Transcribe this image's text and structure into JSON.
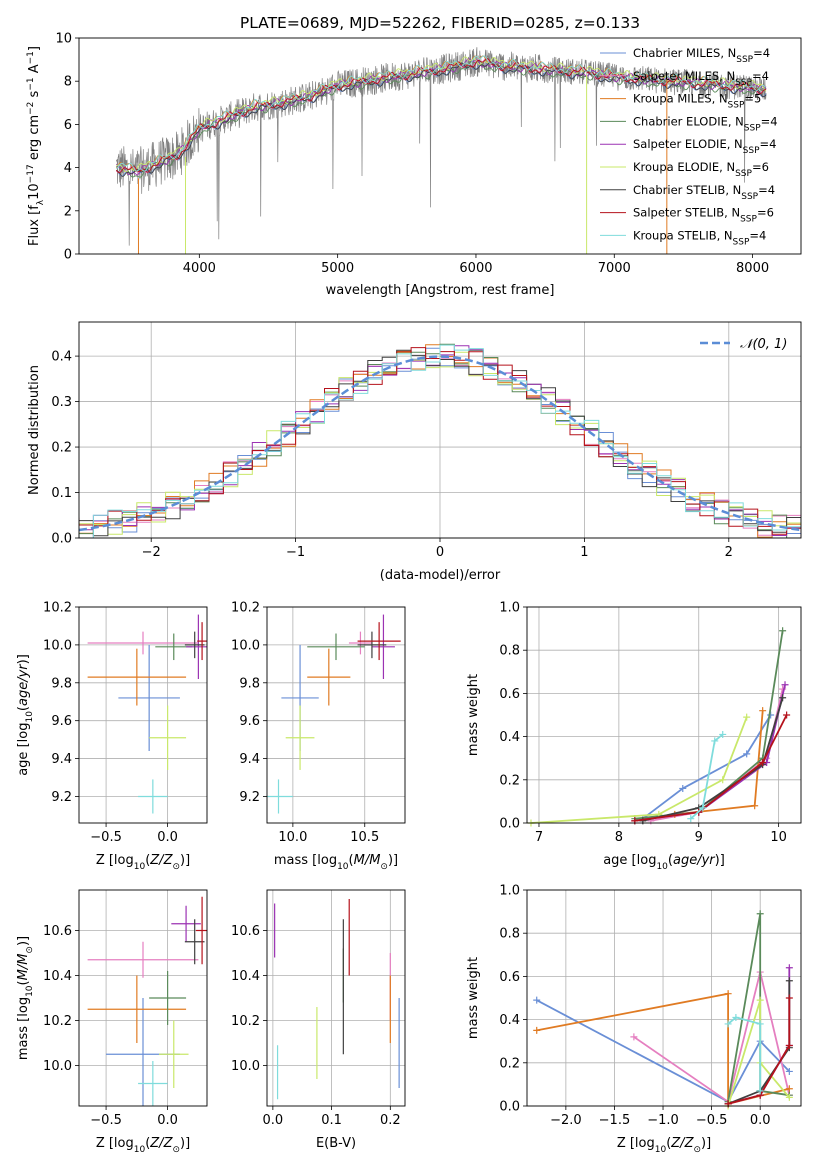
{
  "palette": {
    "chabrier_miles": "#6a8fd6",
    "salpeter_miles": "#e57fc0",
    "kroupa_miles": "#e07b23",
    "chabrier_elodie": "#5a8a5a",
    "salpeter_elodie": "#9b32b3",
    "kroupa_elodie": "#c9e86a",
    "chabrier_stelib": "#404040",
    "salpeter_stelib": "#b5121b",
    "kroupa_stelib": "#7fdcdc",
    "gaussian": "#5b8dd6"
  },
  "chart_data": [
    {
      "id": "spectrum",
      "type": "line",
      "title": "PLATE=0689, MJD=52262, FIBERID=0285, z=0.133",
      "xlabel": "wavelength [Angstrom, rest frame]",
      "ylabel": "Flux [fλ10⁻¹⁷ erg cm⁻² s⁻¹ A⁻¹]",
      "xlim": [
        3130,
        8350
      ],
      "ylim": [
        0,
        10
      ],
      "xticks": [
        4000,
        5000,
        6000,
        7000,
        8000
      ],
      "yticks": [
        0,
        2,
        4,
        6,
        8,
        10
      ],
      "legend_loc": "right",
      "legend": [
        {
          "key": "chabrier_miles",
          "label": "Chabrier MILES, N",
          "sub": "SSP",
          "tail": "=4"
        },
        {
          "key": "salpeter_miles",
          "label": "Salpeter MILES, N",
          "sub": "SSP",
          "tail": "=4"
        },
        {
          "key": "kroupa_miles",
          "label": "Kroupa MILES, N",
          "sub": "SSP",
          "tail": "=5"
        },
        {
          "key": "chabrier_elodie",
          "label": "Chabrier ELODIE, N",
          "sub": "SSP",
          "tail": "=4"
        },
        {
          "key": "salpeter_elodie",
          "label": "Salpeter ELODIE, N",
          "sub": "SSP",
          "tail": "=4"
        },
        {
          "key": "kroupa_elodie",
          "label": "Kroupa ELODIE, N",
          "sub": "SSP",
          "tail": "=6"
        },
        {
          "key": "chabrier_stelib",
          "label": "Chabrier STELIB, N",
          "sub": "SSP",
          "tail": "=4"
        },
        {
          "key": "salpeter_stelib",
          "label": "Salpeter STELIB, N",
          "sub": "SSP",
          "tail": "=6"
        },
        {
          "key": "kroupa_stelib",
          "label": "Kroupa STELIB, N",
          "sub": "SSP",
          "tail": "=4"
        }
      ],
      "continuum": {
        "x": [
          3400,
          3550,
          3700,
          3850,
          4000,
          4200,
          4400,
          4600,
          4800,
          5000,
          5200,
          5400,
          5600,
          5800,
          6000,
          6200,
          6400,
          6600,
          6800,
          7000,
          7200,
          7400,
          7600,
          7800,
          8000,
          8100
        ],
        "y": [
          4.0,
          3.8,
          4.2,
          4.6,
          5.8,
          6.3,
          6.8,
          7.0,
          7.3,
          7.8,
          8.0,
          8.2,
          8.4,
          8.6,
          8.9,
          8.7,
          8.6,
          8.5,
          8.4,
          8.2,
          8.1,
          8.0,
          7.9,
          7.8,
          7.7,
          7.6
        ]
      }
    },
    {
      "id": "residuals",
      "type": "histogram",
      "xlabel": "(data-model)/error",
      "ylabel": "Normed distribution",
      "xlim": [
        -2.5,
        2.5
      ],
      "ylim": [
        0,
        0.475
      ],
      "xticks": [
        -2,
        -1,
        0,
        1,
        2
      ],
      "yticks": [
        0.0,
        0.1,
        0.2,
        0.3,
        0.4
      ],
      "legend_loc": "upper right",
      "legend": [
        {
          "key": "gaussian",
          "label": "𝒩(0, 1)"
        }
      ],
      "bin_width": 0.1
    },
    {
      "id": "age_vs_Z",
      "type": "errorbar",
      "xlabel": "Z [log₁₀(Z/Z⊙)]",
      "ylabel": "age  [log₁₀(age/yr)]",
      "xlim": [
        -0.72,
        0.32
      ],
      "ylim": [
        9.06,
        10.2
      ],
      "xticks": [
        -0.5,
        0.0
      ],
      "yticks": [
        9.2,
        9.4,
        9.6,
        9.8,
        10.0,
        10.2
      ],
      "points": [
        {
          "key": "chabrier_miles",
          "x": -0.15,
          "xerr": 0.25,
          "y": 9.72,
          "yerr": 0.28
        },
        {
          "key": "salpeter_miles",
          "x": -0.2,
          "xerr": 0.45,
          "y": 10.01,
          "yerr": 0.06
        },
        {
          "key": "kroupa_miles",
          "x": -0.25,
          "xerr": 0.4,
          "y": 9.83,
          "yerr": 0.15
        },
        {
          "key": "chabrier_elodie",
          "x": 0.05,
          "xerr": 0.15,
          "y": 9.99,
          "yerr": 0.07
        },
        {
          "key": "salpeter_elodie",
          "x": 0.25,
          "xerr": 0.1,
          "y": 9.99,
          "yerr": 0.17
        },
        {
          "key": "kroupa_elodie",
          "x": 0.0,
          "xerr": 0.15,
          "y": 9.51,
          "yerr": 0.17
        },
        {
          "key": "chabrier_stelib",
          "x": 0.22,
          "xerr": 0.08,
          "y": 10.0,
          "yerr": 0.07
        },
        {
          "key": "salpeter_stelib",
          "x": 0.28,
          "xerr": 0.04,
          "y": 10.02,
          "yerr": 0.1
        },
        {
          "key": "kroupa_stelib",
          "x": -0.12,
          "xerr": 0.12,
          "y": 9.2,
          "yerr": 0.09
        }
      ]
    },
    {
      "id": "age_vs_mass",
      "type": "errorbar",
      "xlabel": "mass [log₁₀(M/M⊙)]",
      "ylabel": "",
      "xlim": [
        9.82,
        10.78
      ],
      "ylim": [
        9.06,
        10.2
      ],
      "xticks": [
        10.0,
        10.5
      ],
      "yticks": [
        9.2,
        9.4,
        9.6,
        9.8,
        10.0,
        10.2
      ],
      "points": [
        {
          "key": "chabrier_miles",
          "x": 10.05,
          "xerr": 0.13,
          "y": 9.72,
          "yerr": 0.28
        },
        {
          "key": "salpeter_miles",
          "x": 10.47,
          "xerr": 0.08,
          "y": 10.01,
          "yerr": 0.06
        },
        {
          "key": "kroupa_miles",
          "x": 10.25,
          "xerr": 0.15,
          "y": 9.83,
          "yerr": 0.15
        },
        {
          "key": "chabrier_elodie",
          "x": 10.3,
          "xerr": 0.2,
          "y": 9.99,
          "yerr": 0.07
        },
        {
          "key": "salpeter_elodie",
          "x": 10.63,
          "xerr": 0.08,
          "y": 9.99,
          "yerr": 0.17
        },
        {
          "key": "kroupa_elodie",
          "x": 10.05,
          "xerr": 0.1,
          "y": 9.51,
          "yerr": 0.17
        },
        {
          "key": "chabrier_stelib",
          "x": 10.55,
          "xerr": 0.1,
          "y": 10.0,
          "yerr": 0.07
        },
        {
          "key": "salpeter_stelib",
          "x": 10.6,
          "xerr": 0.15,
          "y": 10.02,
          "yerr": 0.1
        },
        {
          "key": "kroupa_stelib",
          "x": 9.9,
          "xerr": 0.1,
          "y": 9.2,
          "yerr": 0.09
        }
      ]
    },
    {
      "id": "weight_vs_age",
      "type": "line",
      "xlabel": "age  [log₁₀(age/yr)]",
      "ylabel": "mass weight",
      "xlim": [
        6.85,
        10.28
      ],
      "ylim": [
        0,
        1.0
      ],
      "xticks": [
        7,
        8,
        9,
        10
      ],
      "yticks": [
        0.0,
        0.2,
        0.4,
        0.6,
        0.8,
        1.0
      ],
      "series": [
        {
          "key": "chabrier_miles",
          "x": [
            8.3,
            8.8,
            9.6,
            9.9
          ],
          "y": [
            0.02,
            0.16,
            0.32,
            0.5
          ]
        },
        {
          "key": "salpeter_miles",
          "x": [
            8.4,
            9.0,
            9.85,
            10.05
          ],
          "y": [
            0.01,
            0.05,
            0.3,
            0.62
          ]
        },
        {
          "key": "kroupa_miles",
          "x": [
            8.2,
            8.7,
            9.7,
            9.8
          ],
          "y": [
            0.01,
            0.04,
            0.08,
            0.52
          ]
        },
        {
          "key": "chabrier_elodie",
          "x": [
            8.2,
            9.0,
            9.8,
            10.05
          ],
          "y": [
            0.02,
            0.05,
            0.3,
            0.89
          ]
        },
        {
          "key": "salpeter_elodie",
          "x": [
            8.2,
            9.0,
            9.85,
            10.08
          ],
          "y": [
            0.01,
            0.05,
            0.28,
            0.64
          ]
        },
        {
          "key": "kroupa_elodie",
          "x": [
            6.9,
            8.5,
            9.3,
            9.6
          ],
          "y": [
            0.0,
            0.04,
            0.2,
            0.49
          ]
        },
        {
          "key": "chabrier_stelib",
          "x": [
            8.3,
            9.0,
            9.8,
            10.05
          ],
          "y": [
            0.01,
            0.07,
            0.27,
            0.58
          ]
        },
        {
          "key": "salpeter_stelib",
          "x": [
            8.2,
            9.0,
            9.8,
            10.1
          ],
          "y": [
            0.01,
            0.05,
            0.28,
            0.5
          ]
        },
        {
          "key": "kroupa_stelib",
          "x": [
            8.9,
            9.05,
            9.2,
            9.3
          ],
          "y": [
            0.02,
            0.07,
            0.38,
            0.41
          ]
        }
      ]
    },
    {
      "id": "mass_vs_Z",
      "type": "errorbar",
      "xlabel": "Z [log₁₀(Z/Z⊙)]",
      "ylabel": "mass [log₁₀(M/M⊙)]",
      "xlim": [
        -0.72,
        0.32
      ],
      "ylim": [
        9.82,
        10.78
      ],
      "xticks": [
        -0.5,
        0.0
      ],
      "yticks": [
        10.0,
        10.2,
        10.4,
        10.6
      ],
      "points": [
        {
          "key": "chabrier_miles",
          "x": -0.2,
          "xerr": 0.3,
          "y": 10.05,
          "yerr": 0.25
        },
        {
          "key": "salpeter_miles",
          "x": -0.2,
          "xerr": 0.45,
          "y": 10.47,
          "yerr": 0.08
        },
        {
          "key": "kroupa_miles",
          "x": -0.25,
          "xerr": 0.4,
          "y": 10.25,
          "yerr": 0.15
        },
        {
          "key": "chabrier_elodie",
          "x": 0.0,
          "xerr": 0.15,
          "y": 10.3,
          "yerr": 0.12
        },
        {
          "key": "salpeter_elodie",
          "x": 0.15,
          "xerr": 0.12,
          "y": 10.63,
          "yerr": 0.08
        },
        {
          "key": "kroupa_elodie",
          "x": 0.05,
          "xerr": 0.12,
          "y": 10.05,
          "yerr": 0.15
        },
        {
          "key": "chabrier_stelib",
          "x": 0.22,
          "xerr": 0.08,
          "y": 10.55,
          "yerr": 0.1
        },
        {
          "key": "salpeter_stelib",
          "x": 0.28,
          "xerr": 0.05,
          "y": 10.6,
          "yerr": 0.15
        },
        {
          "key": "kroupa_stelib",
          "x": -0.12,
          "xerr": 0.12,
          "y": 9.92,
          "yerr": 0.1
        }
      ]
    },
    {
      "id": "mass_vs_ebv",
      "type": "errorbar",
      "xlabel": "E(B-V)",
      "ylabel": "",
      "xlim": [
        -0.01,
        0.225
      ],
      "ylim": [
        9.82,
        10.78
      ],
      "xticks": [
        0.0,
        0.1,
        0.2
      ],
      "yticks": [
        10.0,
        10.2,
        10.4,
        10.6
      ],
      "points": [
        {
          "key": "chabrier_miles",
          "x": 0.215,
          "xerr": 0,
          "y": 10.1,
          "yerr": 0.2
        },
        {
          "key": "salpeter_miles",
          "x": 0.2,
          "xerr": 0,
          "y": 10.35,
          "yerr": 0.15
        },
        {
          "key": "kroupa_miles",
          "x": 0.2,
          "xerr": 0,
          "y": 10.25,
          "yerr": 0.15
        },
        {
          "key": "chabrier_elodie",
          "x": 0.12,
          "xerr": 0,
          "y": 10.4,
          "yerr": 0.12
        },
        {
          "key": "salpeter_elodie",
          "x": 0.003,
          "xerr": 0,
          "y": 10.6,
          "yerr": 0.12
        },
        {
          "key": "kroupa_elodie",
          "x": 0.075,
          "xerr": 0,
          "y": 10.1,
          "yerr": 0.16
        },
        {
          "key": "chabrier_stelib",
          "x": 0.12,
          "xerr": 0,
          "y": 10.35,
          "yerr": 0.3
        },
        {
          "key": "salpeter_stelib",
          "x": 0.13,
          "xerr": 0,
          "y": 10.57,
          "yerr": 0.17
        },
        {
          "key": "kroupa_stelib",
          "x": 0.008,
          "xerr": 0,
          "y": 9.97,
          "yerr": 0.12
        }
      ]
    },
    {
      "id": "weight_vs_Z",
      "type": "line",
      "xlabel": "Z [log₁₀(Z/Z⊙)]",
      "ylabel": "mass weight",
      "xlim": [
        -2.4,
        0.42
      ],
      "ylim": [
        0,
        1.0
      ],
      "xticks": [
        -2.0,
        -1.5,
        -1.0,
        -0.5,
        0.0
      ],
      "yticks": [
        0.0,
        0.2,
        0.4,
        0.6,
        0.8,
        1.0
      ],
      "series": [
        {
          "key": "chabrier_miles",
          "x": [
            -2.3,
            -0.33,
            0.0,
            0.3
          ],
          "y": [
            0.49,
            0.02,
            0.3,
            0.16
          ]
        },
        {
          "key": "salpeter_miles",
          "x": [
            -1.3,
            -0.33,
            0.0,
            0.3
          ],
          "y": [
            0.32,
            0.02,
            0.62,
            0.05
          ]
        },
        {
          "key": "kroupa_miles",
          "x": [
            -2.3,
            -0.33,
            -0.33,
            0.3
          ],
          "y": [
            0.35,
            0.52,
            0.01,
            0.08
          ]
        },
        {
          "key": "chabrier_elodie",
          "x": [
            -0.33,
            0.0,
            0.0,
            0.3
          ],
          "y": [
            0.02,
            0.89,
            0.07,
            0.05
          ]
        },
        {
          "key": "salpeter_elodie",
          "x": [
            -0.33,
            0.0,
            0.3,
            0.3
          ],
          "y": [
            0.01,
            0.05,
            0.28,
            0.64
          ]
        },
        {
          "key": "kroupa_elodie",
          "x": [
            -0.33,
            0.0,
            0.0,
            0.3
          ],
          "y": [
            0.0,
            0.49,
            0.2,
            0.04
          ]
        },
        {
          "key": "chabrier_stelib",
          "x": [
            -0.33,
            0.0,
            0.3,
            0.3
          ],
          "y": [
            0.01,
            0.07,
            0.27,
            0.58
          ]
        },
        {
          "key": "salpeter_stelib",
          "x": [
            -0.33,
            0.0,
            0.3,
            0.3
          ],
          "y": [
            0.01,
            0.05,
            0.28,
            0.5
          ]
        },
        {
          "key": "kroupa_stelib",
          "x": [
            -0.33,
            -0.25,
            0.0,
            0.0
          ],
          "y": [
            0.38,
            0.41,
            0.38,
            0.07
          ]
        }
      ]
    }
  ]
}
